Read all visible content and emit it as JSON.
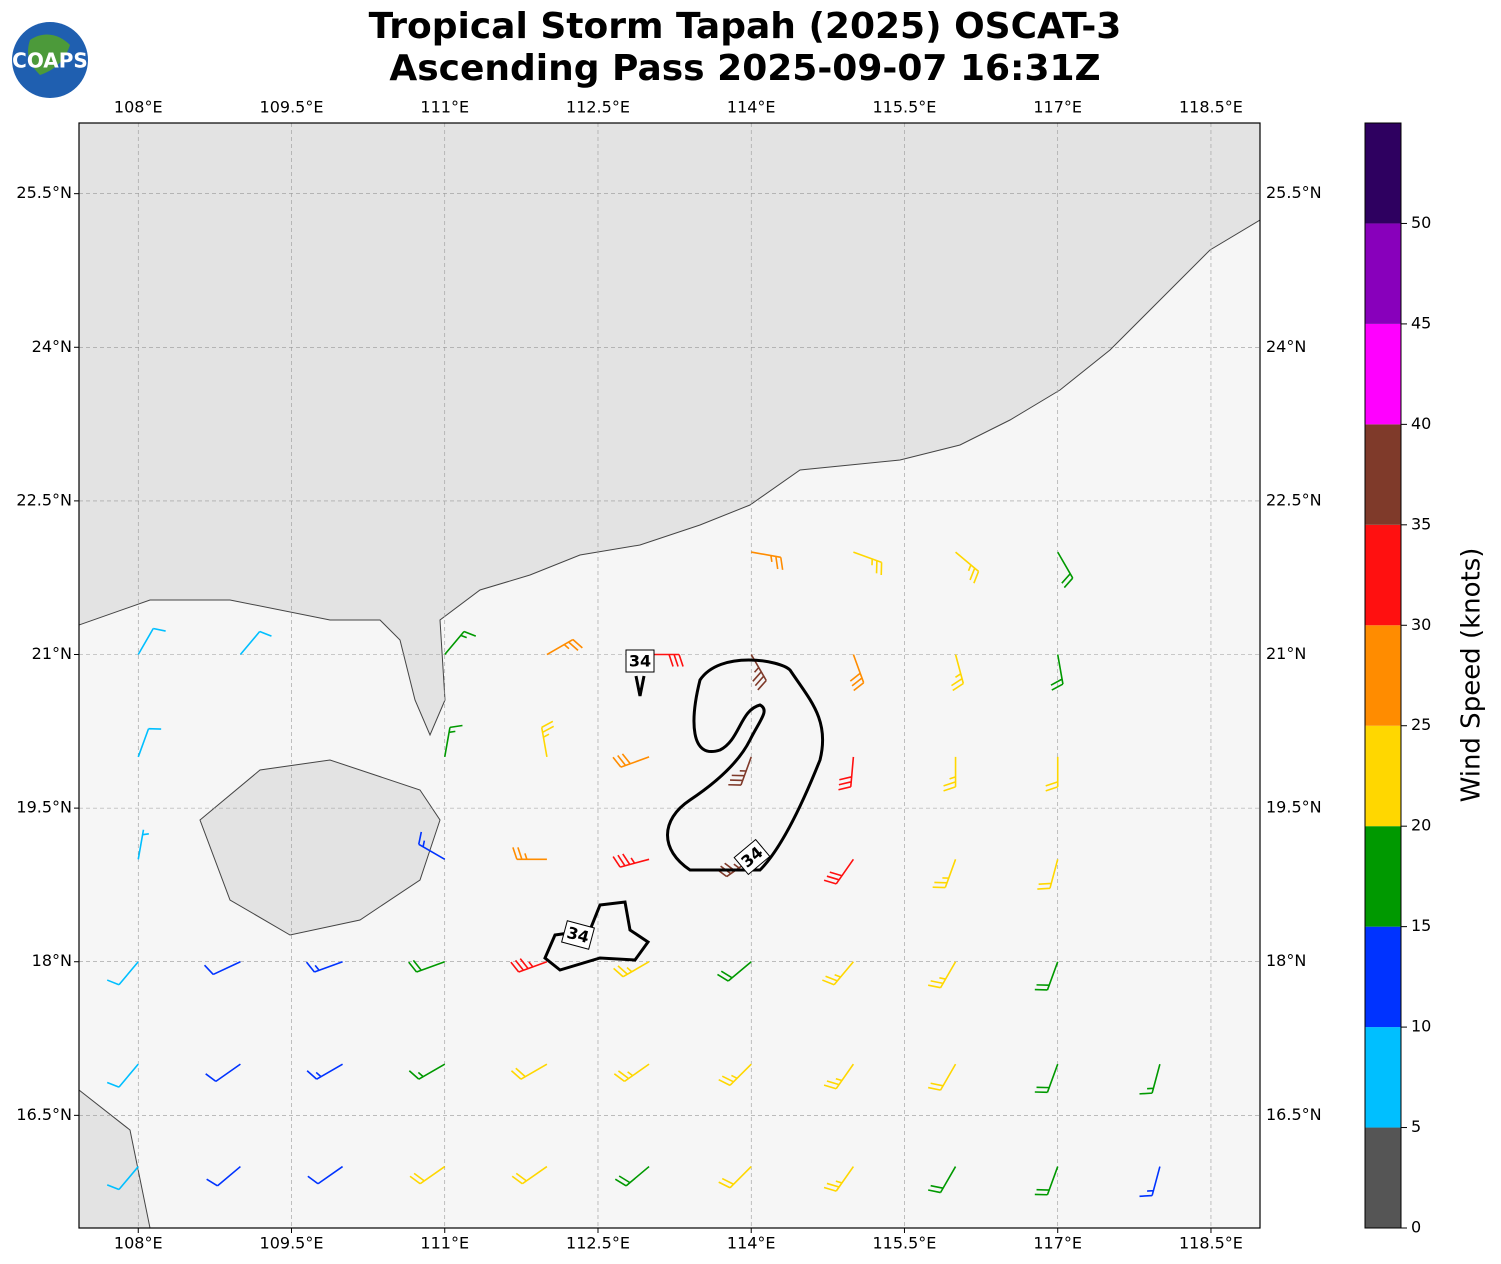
{
  "logo": "COAPS",
  "title": [
    "Tropical Storm Tapah (2025) OSCAT-3",
    "Ascending Pass 2025-09-07 16:31Z"
  ],
  "map": {
    "xlim": [
      107.42,
      118.98
    ],
    "ylim": [
      15.4,
      26.19
    ],
    "xticks": [
      {
        "value": 108,
        "label": "108°E"
      },
      {
        "value": 109.5,
        "label": "109.5°E"
      },
      {
        "value": 111,
        "label": "111°E"
      },
      {
        "value": 112.5,
        "label": "112.5°E"
      },
      {
        "value": 114,
        "label": "114°E"
      },
      {
        "value": 115.5,
        "label": "115.5°E"
      },
      {
        "value": 117,
        "label": "117°E"
      },
      {
        "value": 118.5,
        "label": "118.5°E"
      }
    ],
    "yticks": [
      {
        "value": 16.5,
        "label": "16.5°N"
      },
      {
        "value": 18,
        "label": "18°N"
      },
      {
        "value": 19.5,
        "label": "19.5°N"
      },
      {
        "value": 21,
        "label": "21°N"
      },
      {
        "value": 22.5,
        "label": "22.5°N"
      },
      {
        "value": 24,
        "label": "24°N"
      },
      {
        "value": 25.5,
        "label": "25.5°N"
      }
    ],
    "grid": true,
    "contour_labels": [
      "34",
      "34",
      "34"
    ],
    "barbs": [
      {
        "lon": 114,
        "lat": 22,
        "speed": 27,
        "direction": 100
      },
      {
        "lon": 115,
        "lat": 22,
        "speed": 23,
        "direction": 110
      },
      {
        "lon": 116,
        "lat": 22,
        "speed": 24,
        "direction": 130
      },
      {
        "lon": 117,
        "lat": 22,
        "speed": 18,
        "direction": 150
      },
      {
        "lon": 108,
        "lat": 21,
        "speed": 8,
        "direction": 30
      },
      {
        "lon": 109,
        "lat": 21,
        "speed": 8,
        "direction": 40
      },
      {
        "lon": 111,
        "lat": 21,
        "speed": 15,
        "direction": 40
      },
      {
        "lon": 112,
        "lat": 21,
        "speed": 27,
        "direction": 60
      },
      {
        "lon": 113,
        "lat": 21,
        "speed": 32,
        "direction": 90
      },
      {
        "lon": 114,
        "lat": 21,
        "speed": 37,
        "direction": 150
      },
      {
        "lon": 115,
        "lat": 21,
        "speed": 28,
        "direction": 160
      },
      {
        "lon": 116,
        "lat": 21,
        "speed": 23,
        "direction": 165
      },
      {
        "lon": 117,
        "lat": 21,
        "speed": 18,
        "direction": 170
      },
      {
        "lon": 108,
        "lat": 20,
        "speed": 8,
        "direction": 20
      },
      {
        "lon": 111,
        "lat": 20,
        "speed": 17,
        "direction": 10
      },
      {
        "lon": 112,
        "lat": 20,
        "speed": 24,
        "direction": 350
      },
      {
        "lon": 113,
        "lat": 20,
        "speed": 28,
        "direction": 250
      },
      {
        "lon": 114,
        "lat": 20,
        "speed": 37,
        "direction": 200
      },
      {
        "lon": 115,
        "lat": 20,
        "speed": 32,
        "direction": 185
      },
      {
        "lon": 116,
        "lat": 20,
        "speed": 24,
        "direction": 180
      },
      {
        "lon": 117,
        "lat": 20,
        "speed": 22,
        "direction": 180
      },
      {
        "lon": 108,
        "lat": 19,
        "speed": 7,
        "direction": 10
      },
      {
        "lon": 111,
        "lat": 19,
        "speed": 14,
        "direction": 300
      },
      {
        "lon": 112,
        "lat": 19,
        "speed": 27,
        "direction": 270
      },
      {
        "lon": 113,
        "lat": 19,
        "speed": 33,
        "direction": 255
      },
      {
        "lon": 114,
        "lat": 19,
        "speed": 36,
        "direction": 235
      },
      {
        "lon": 115,
        "lat": 19,
        "speed": 31,
        "direction": 215
      },
      {
        "lon": 116,
        "lat": 19,
        "speed": 24,
        "direction": 200
      },
      {
        "lon": 117,
        "lat": 19,
        "speed": 22,
        "direction": 195
      },
      {
        "lon": 108,
        "lat": 18,
        "speed": 9,
        "direction": 220
      },
      {
        "lon": 109,
        "lat": 18,
        "speed": 12,
        "direction": 245
      },
      {
        "lon": 110,
        "lat": 18,
        "speed": 13,
        "direction": 250
      },
      {
        "lon": 111,
        "lat": 18,
        "speed": 18,
        "direction": 250
      },
      {
        "lon": 112,
        "lat": 18,
        "speed": 33,
        "direction": 250
      },
      {
        "lon": 113,
        "lat": 18,
        "speed": 24,
        "direction": 240
      },
      {
        "lon": 114,
        "lat": 18,
        "speed": 19,
        "direction": 230
      },
      {
        "lon": 115,
        "lat": 18,
        "speed": 23,
        "direction": 220
      },
      {
        "lon": 116,
        "lat": 18,
        "speed": 23,
        "direction": 210
      },
      {
        "lon": 117,
        "lat": 18,
        "speed": 19,
        "direction": 200
      },
      {
        "lon": 108,
        "lat": 17,
        "speed": 9,
        "direction": 220
      },
      {
        "lon": 109,
        "lat": 17,
        "speed": 12,
        "direction": 235
      },
      {
        "lon": 110,
        "lat": 17,
        "speed": 13,
        "direction": 240
      },
      {
        "lon": 111,
        "lat": 17,
        "speed": 17,
        "direction": 240
      },
      {
        "lon": 112,
        "lat": 17,
        "speed": 22,
        "direction": 240
      },
      {
        "lon": 113,
        "lat": 17,
        "speed": 23,
        "direction": 235
      },
      {
        "lon": 114,
        "lat": 17,
        "speed": 24,
        "direction": 225
      },
      {
        "lon": 115,
        "lat": 17,
        "speed": 23,
        "direction": 215
      },
      {
        "lon": 116,
        "lat": 17,
        "speed": 22,
        "direction": 210
      },
      {
        "lon": 117,
        "lat": 17,
        "speed": 19,
        "direction": 200
      },
      {
        "lon": 118,
        "lat": 17,
        "speed": 17,
        "direction": 195
      },
      {
        "lon": 108,
        "lat": 16,
        "speed": 8,
        "direction": 220
      },
      {
        "lon": 109,
        "lat": 16,
        "speed": 11,
        "direction": 230
      },
      {
        "lon": 110,
        "lat": 16,
        "speed": 12,
        "direction": 235
      },
      {
        "lon": 111,
        "lat": 16,
        "speed": 21,
        "direction": 235
      },
      {
        "lon": 112,
        "lat": 16,
        "speed": 22,
        "direction": 235
      },
      {
        "lon": 113,
        "lat": 16,
        "speed": 19,
        "direction": 230
      },
      {
        "lon": 114,
        "lat": 16,
        "speed": 22,
        "direction": 225
      },
      {
        "lon": 115,
        "lat": 16,
        "speed": 23,
        "direction": 215
      },
      {
        "lon": 116,
        "lat": 16,
        "speed": 19,
        "direction": 210
      },
      {
        "lon": 117,
        "lat": 16,
        "speed": 18,
        "direction": 200
      },
      {
        "lon": 118,
        "lat": 16,
        "speed": 14,
        "direction": 195
      }
    ]
  },
  "colorbar": {
    "label": "Wind Speed (knots)",
    "lim": [
      0,
      55
    ],
    "ticks": [
      0,
      5,
      10,
      15,
      20,
      25,
      30,
      35,
      40,
      45,
      50
    ],
    "colors": [
      "#555555",
      "#00bfff",
      "#0033ff",
      "#009900",
      "#ffd700",
      "#ff8c00",
      "#ff1010",
      "#7f3a2a",
      "#ff00ff",
      "#8800bb",
      "#2e0060"
    ]
  }
}
